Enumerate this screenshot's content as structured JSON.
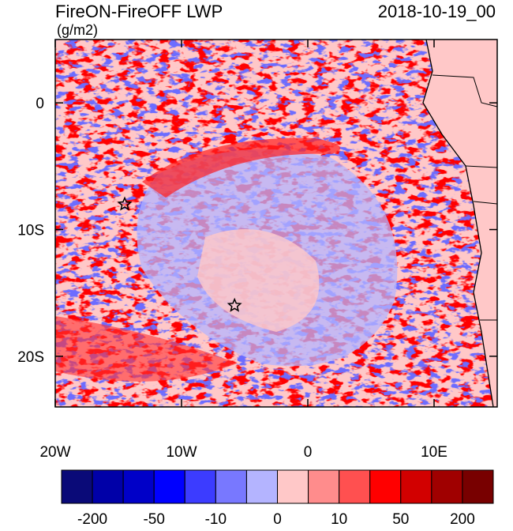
{
  "chart_data": {
    "type": "map",
    "title": "FireON-FireOFF LWP",
    "right_title": "2018-10-19_00",
    "units": "(g/m2)",
    "xlim": [
      -20,
      15
    ],
    "ylim": [
      -24,
      5
    ],
    "xticks": [
      {
        "value": -20,
        "label": "20W"
      },
      {
        "value": -10,
        "label": "10W"
      },
      0,
      {
        "value": 10,
        "label": "10E"
      }
    ],
    "yticks": [
      0,
      {
        "value": -10,
        "label": "10S"
      },
      {
        "value": -20,
        "label": "20S"
      }
    ],
    "markers": [
      {
        "lon": -14.5,
        "lat": -8
      },
      {
        "lon": -5.8,
        "lat": -16
      }
    ],
    "colorbar": {
      "colors": [
        "#0a0a78",
        "#0000a8",
        "#0000c8",
        "#0000ff",
        "#3c3cff",
        "#7878ff",
        "#b4b4ff",
        "#ffc8c8",
        "#ff8c8c",
        "#ff5050",
        "#ff0000",
        "#d20000",
        "#a00000",
        "#780000"
      ],
      "labels": [
        -200,
        -50,
        -10,
        0,
        10,
        50,
        200
      ]
    }
  }
}
